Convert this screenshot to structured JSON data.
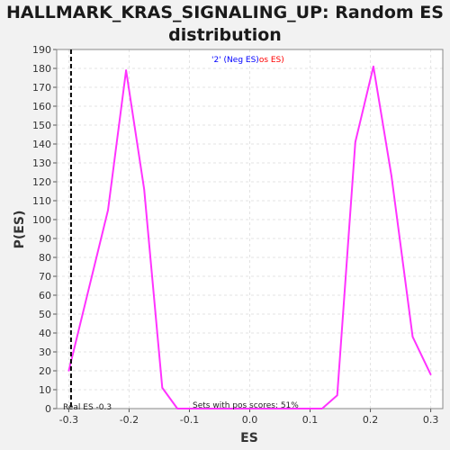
{
  "chart_data": {
    "type": "line",
    "title_line1": "HALLMARK_KRAS_SIGNALING_UP: Random ES",
    "title_line2": "distribution",
    "xlabel": "ES",
    "ylabel": "P(ES)",
    "xlim": [
      -0.32,
      0.32
    ],
    "ylim": [
      0,
      190
    ],
    "x_ticks": [
      "-0.3",
      "-0.2",
      "-0.1",
      "0.0",
      "0.1",
      "0.2",
      "0.3"
    ],
    "x_tick_values": [
      -0.3,
      -0.2,
      -0.1,
      0.0,
      0.1,
      0.2,
      0.3
    ],
    "y_ticks": [
      0,
      10,
      20,
      30,
      40,
      50,
      60,
      70,
      80,
      90,
      100,
      110,
      120,
      130,
      140,
      150,
      160,
      170,
      180,
      190
    ],
    "grid": true,
    "legend": {
      "neg": {
        "text": "'2' (Neg ES)",
        "color": "#0000ff"
      },
      "pos": {
        "text": "os ES)",
        "color": "#ff0000"
      }
    },
    "series": [
      {
        "color": "#ff33ff",
        "x": [
          -0.3,
          -0.235,
          -0.205,
          -0.175,
          -0.145,
          -0.12,
          -0.1,
          0.1,
          0.12,
          0.145,
          0.175,
          0.205,
          0.235,
          0.27,
          0.3
        ],
        "y": [
          20,
          105,
          179,
          116,
          11,
          0,
          0,
          0,
          0,
          7,
          141,
          181,
          123,
          38,
          18
        ]
      }
    ],
    "real_es": {
      "x": -0.3,
      "label": "Real ES -0.3",
      "color": "#000000"
    },
    "annotation": "Sets with pos scores: 51%"
  }
}
